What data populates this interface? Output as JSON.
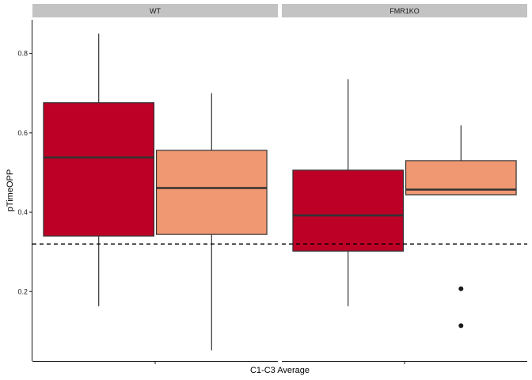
{
  "chart_data": {
    "type": "boxplot",
    "xlabel": "C1-C3 Average",
    "ylabel": "pTimeOPP",
    "ylim": [
      0.025,
      0.885
    ],
    "yticks": [
      0.2,
      0.4,
      0.6,
      0.8
    ],
    "ytick_labels": [
      "0.2",
      "0.4",
      "0.6",
      "0.8"
    ],
    "reference_line": {
      "y": 0.32,
      "style": "dashed",
      "color": "#000000"
    },
    "facets": [
      {
        "label": "WT",
        "boxes": [
          {
            "color": "#bd0026",
            "whisker_low": 0.163,
            "q1": 0.34,
            "median": 0.538,
            "q3": 0.676,
            "whisker_high": 0.85,
            "outliers": []
          },
          {
            "color": "#f09872",
            "whisker_low": 0.052,
            "q1": 0.344,
            "median": 0.461,
            "q3": 0.556,
            "whisker_high": 0.7,
            "outliers": []
          }
        ]
      },
      {
        "label": "FMR1KO",
        "boxes": [
          {
            "color": "#bd0026",
            "whisker_low": 0.163,
            "q1": 0.302,
            "median": 0.392,
            "q3": 0.506,
            "whisker_high": 0.735,
            "outliers": []
          },
          {
            "color": "#f09872",
            "whisker_low": 0.444,
            "q1": 0.444,
            "median": 0.457,
            "q3": 0.53,
            "whisker_high": 0.619,
            "outliers": [
              0.207,
              0.114
            ]
          }
        ]
      }
    ],
    "grid": false,
    "legend": "none"
  }
}
